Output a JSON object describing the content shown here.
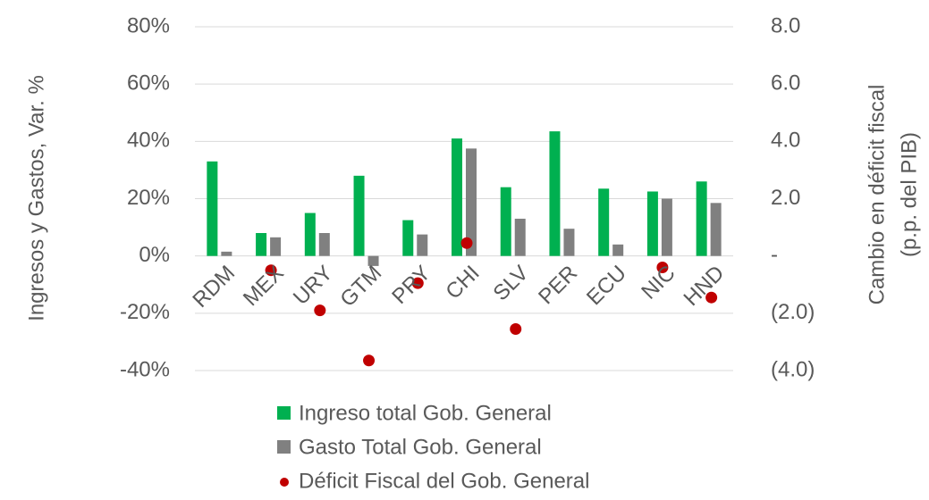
{
  "chart_data": {
    "type": "bar",
    "y_label": "Ingresos y Gastos, Var. %",
    "y2_label": [
      "Cambio en déficit fiscal",
      "(p.p. del PIB)"
    ],
    "categories": [
      "RDM",
      "MEX",
      "URY",
      "GTM",
      "PRY",
      "CHI",
      "SLV",
      "PER",
      "ECU",
      "NIC",
      "HND"
    ],
    "series": [
      {
        "name": "Ingreso total Gob. General",
        "color": "#00b050",
        "type": "bar",
        "values": [
          33,
          8,
          15,
          28,
          12.5,
          41,
          24,
          43.5,
          23.5,
          22.5,
          26
        ]
      },
      {
        "name": "Gasto Total Gob. General",
        "color": "#808080",
        "type": "bar",
        "values": [
          1.5,
          6.5,
          8,
          -3.5,
          7.5,
          37.5,
          13,
          9.5,
          4,
          20,
          18.5
        ]
      },
      {
        "name": "Déficit Fiscal del Gob. General",
        "color": "#c00000",
        "type": "scatter",
        "axis": "y2",
        "values": [
          null,
          -0.5,
          -1.9,
          -3.65,
          -0.95,
          0.45,
          -2.55,
          null,
          null,
          -0.4,
          -1.45
        ]
      }
    ],
    "ylim": [
      -40,
      80
    ],
    "yticks": [
      {
        "value": -40,
        "label": "-40%"
      },
      {
        "value": -20,
        "label": "-20%"
      },
      {
        "value": 0,
        "label": "0%"
      },
      {
        "value": 20,
        "label": "20%"
      },
      {
        "value": 40,
        "label": "40%"
      },
      {
        "value": 60,
        "label": "60%"
      },
      {
        "value": 80,
        "label": "80%"
      }
    ],
    "y2lim": [
      -4,
      8
    ],
    "y2ticks": [
      {
        "value": -4,
        "label": "(4.0)"
      },
      {
        "value": -2,
        "label": "(2.0)"
      },
      {
        "value": 0,
        "label": "-"
      },
      {
        "value": 2,
        "label": "2.0"
      },
      {
        "value": 4,
        "label": "4.0"
      },
      {
        "value": 6,
        "label": "6.0"
      },
      {
        "value": 8,
        "label": "8.0"
      }
    ],
    "grid": true
  }
}
